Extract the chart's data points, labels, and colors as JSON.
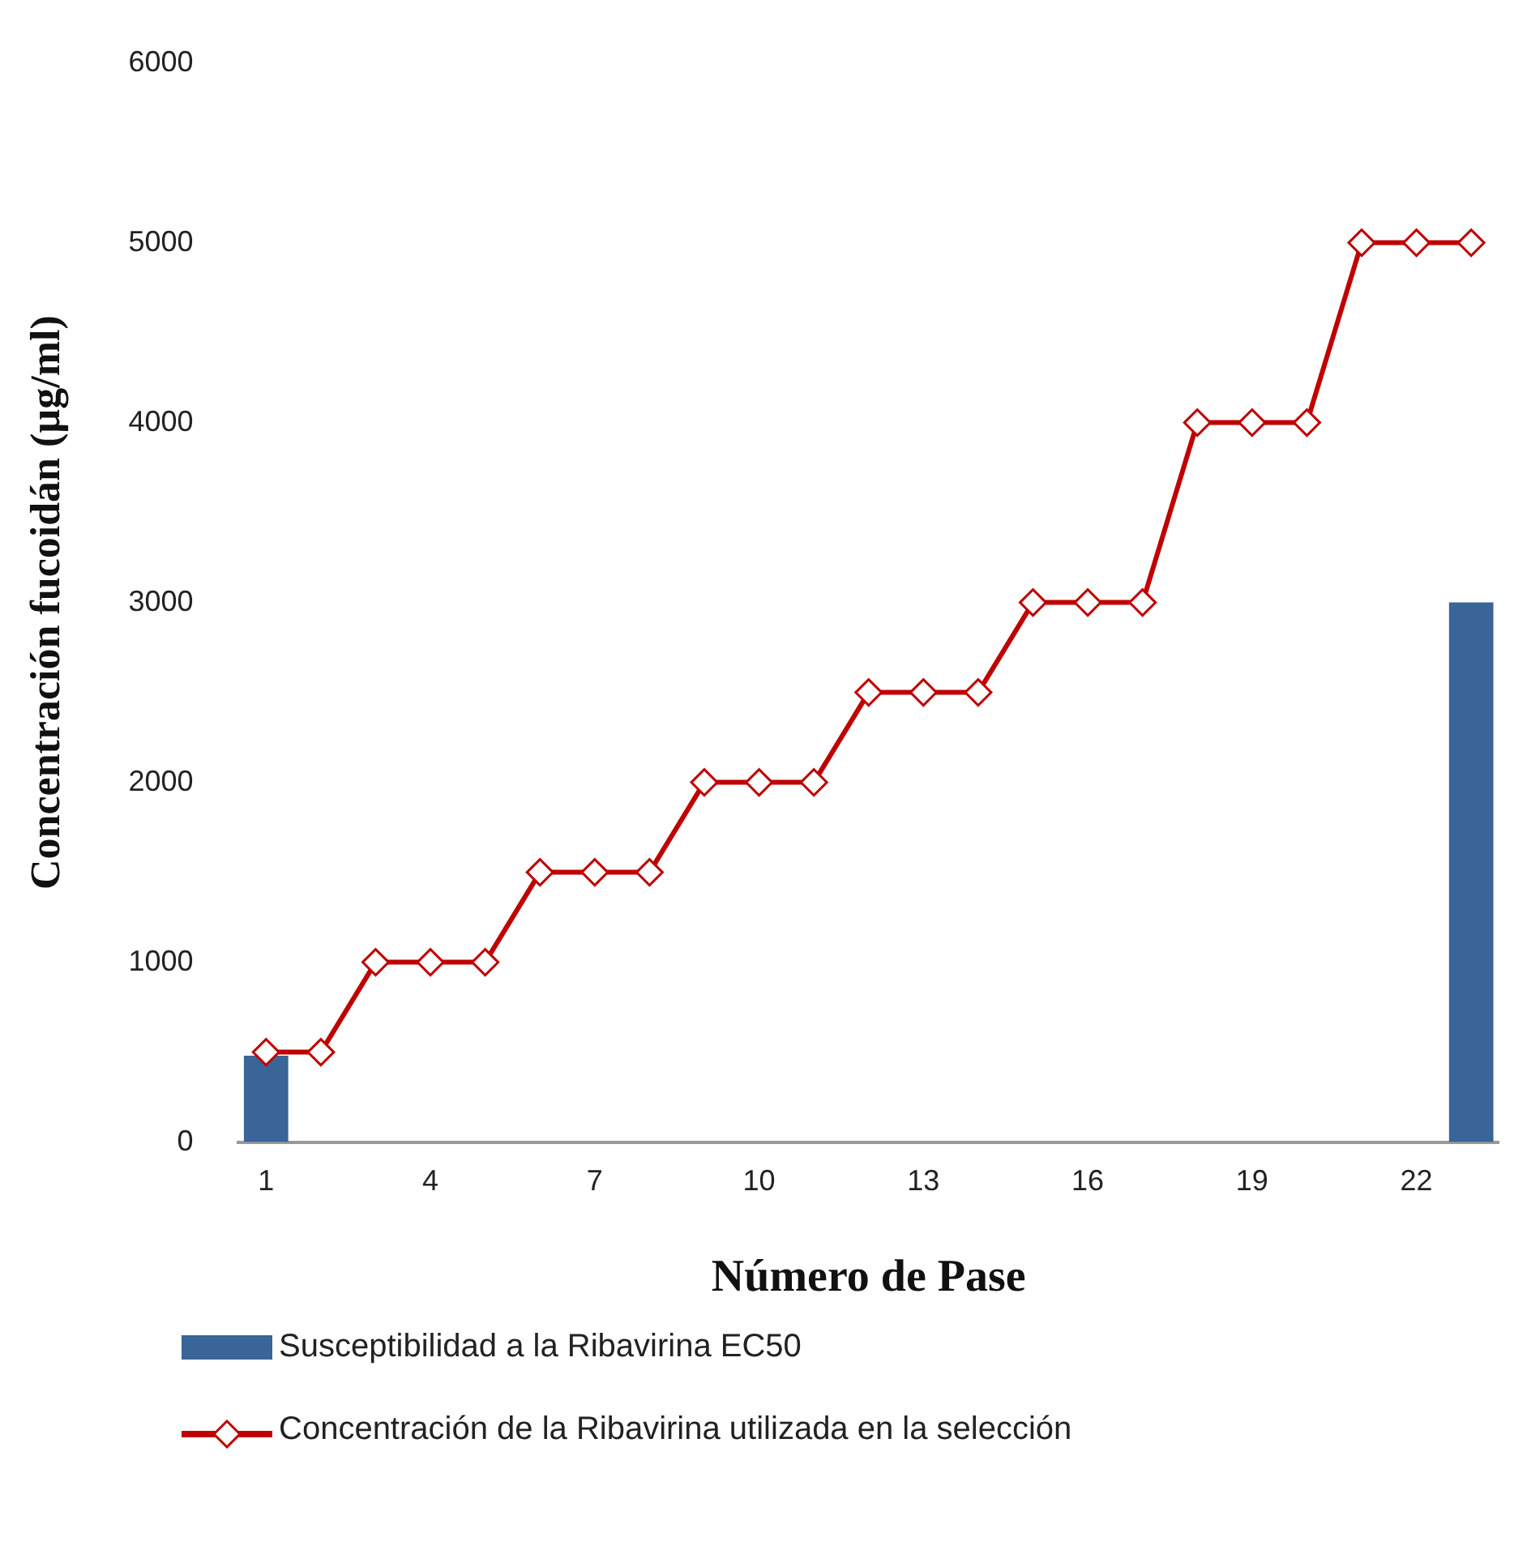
{
  "chart_data": {
    "type": "bar",
    "xlabel": "Número de Pase",
    "ylabel": "Concentración fucoidán (µg/ml)",
    "categories": [
      "1",
      null,
      null,
      "4",
      null,
      null,
      "7",
      null,
      null,
      "10",
      null,
      null,
      "13",
      null,
      null,
      "16",
      null,
      null,
      "19",
      null,
      null,
      "22",
      null
    ],
    "series": [
      {
        "name": "Susceptibilidad a la Ribavirina EC50",
        "color": "#3a6598",
        "values": [
          480,
          null,
          null,
          null,
          null,
          null,
          null,
          null,
          null,
          null,
          null,
          null,
          null,
          null,
          null,
          null,
          null,
          null,
          null,
          null,
          null,
          null,
          3000
        ]
      },
      {
        "name": "Concentración de la Ribavirina utilizada en la selección",
        "type": "line",
        "color": "#c00000",
        "marker": "diamond",
        "values": [
          500,
          500,
          1000,
          1000,
          1000,
          1500,
          1500,
          1500,
          2000,
          2000,
          2000,
          2500,
          2500,
          2500,
          3000,
          3000,
          3000,
          4000,
          4000,
          4000,
          5000,
          5000,
          5000
        ]
      }
    ],
    "ylim": [
      0,
      6000
    ],
    "yticks": [
      0,
      1000,
      2000,
      3000,
      4000,
      5000,
      6000
    ],
    "grid": false,
    "legend": "bottom"
  }
}
